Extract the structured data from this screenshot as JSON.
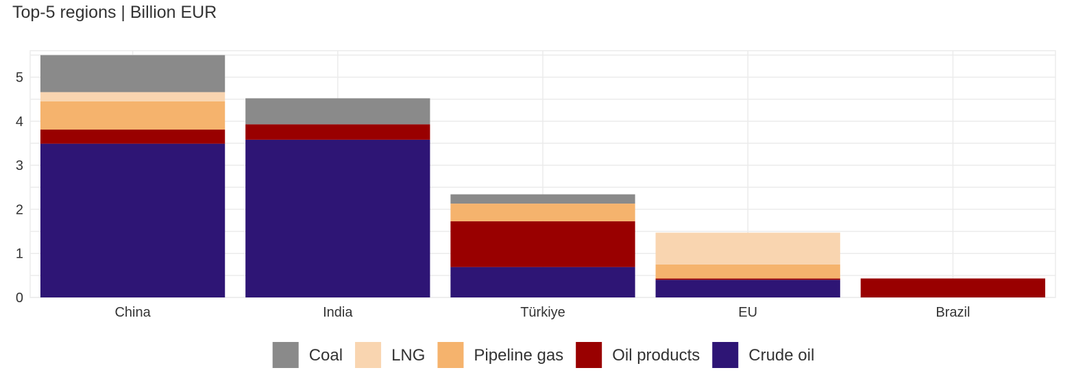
{
  "chart_data": {
    "type": "bar",
    "stacked": true,
    "title": "Top-5 regions | Billion EUR",
    "xlabel": "",
    "ylabel": "",
    "ylim": [
      0,
      5.6
    ],
    "yticks": [
      0,
      1,
      2,
      3,
      4,
      5
    ],
    "grid": true,
    "legend_position": "bottom",
    "categories": [
      "China",
      "India",
      "Türkiye",
      "EU",
      "Brazil"
    ],
    "series": [
      {
        "name": "Crude oil",
        "color": "#2e1575",
        "values": [
          3.49,
          3.58,
          0.69,
          0.4,
          0.0
        ]
      },
      {
        "name": "Oil products",
        "color": "#990000",
        "values": [
          0.32,
          0.35,
          1.04,
          0.03,
          0.43
        ]
      },
      {
        "name": "Pipeline gas",
        "color": "#f5b36d",
        "values": [
          0.64,
          0.0,
          0.4,
          0.32,
          0.0
        ]
      },
      {
        "name": "LNG",
        "color": "#f9d5b0",
        "values": [
          0.21,
          0.0,
          0.0,
          0.72,
          0.0
        ]
      },
      {
        "name": "Coal",
        "color": "#8a8a8a",
        "values": [
          0.84,
          0.59,
          0.21,
          0.0,
          0.0
        ]
      }
    ],
    "legend_order": [
      "Coal",
      "LNG",
      "Pipeline gas",
      "Oil products",
      "Crude oil"
    ]
  }
}
